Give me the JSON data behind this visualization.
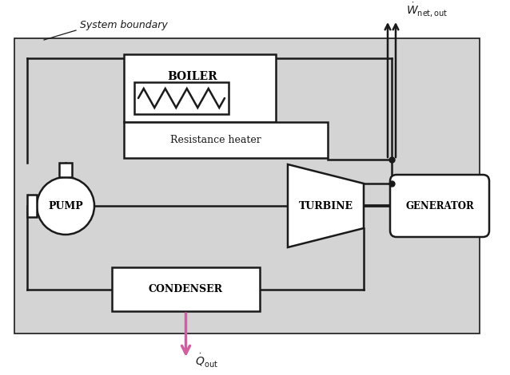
{
  "bg_color": "#d4d4d4",
  "white": "#ffffff",
  "black": "#1a1a1a",
  "pink_arrow": "#d060a0",
  "fig_bg": "#ffffff",
  "system_boundary_text": "System boundary",
  "boiler_text": "BOILER",
  "resistance_text": "Resistance heater",
  "pump_text": "PUMP",
  "turbine_text": "TURBINE",
  "generator_text": "GENERATOR",
  "condenser_text": "CONDENSER",
  "w_label": "$\\dot{W}_{\\mathsf{net,out}}$",
  "q_label": "$\\dot{Q}_{\\mathsf{out}}$",
  "lw": 1.8,
  "fig_w": 6.38,
  "fig_h": 4.7,
  "dpi": 100
}
